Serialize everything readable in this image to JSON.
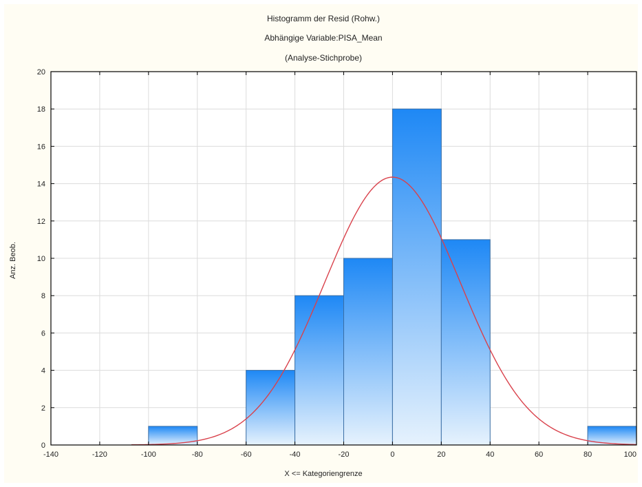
{
  "chart_data": {
    "type": "bar",
    "title_lines": [
      "Histogramm der Resid (Rohw.)",
      "Abhängige Variable:PISA_Mean",
      "(Analyse-Stichprobe)"
    ],
    "xlabel": "X <= Kategoriengrenze",
    "ylabel": "Anz. Beob.",
    "xlim": [
      -140,
      100
    ],
    "ylim": [
      0,
      20
    ],
    "x_ticks": [
      -140,
      -120,
      -100,
      -80,
      -60,
      -40,
      -20,
      0,
      20,
      40,
      60,
      80,
      100
    ],
    "y_ticks": [
      0,
      2,
      4,
      6,
      8,
      10,
      12,
      14,
      16,
      18,
      20
    ],
    "x_tick_labels": [
      "-140",
      "-120",
      "-100",
      "-80",
      "-60",
      "-40",
      "-20",
      "0",
      "20",
      "40",
      "60",
      "80",
      "100"
    ],
    "y_tick_labels": [
      "0",
      "2",
      "4",
      "6",
      "8",
      "10",
      "12",
      "14",
      "16",
      "18",
      "20"
    ],
    "grid": true,
    "bins": [
      {
        "x0": -100,
        "x1": -80,
        "count": 1
      },
      {
        "x0": -60,
        "x1": -40,
        "count": 4
      },
      {
        "x0": -40,
        "x1": -20,
        "count": 8
      },
      {
        "x0": -20,
        "x1": 0,
        "count": 10
      },
      {
        "x0": 0,
        "x1": 20,
        "count": 18
      },
      {
        "x0": 20,
        "x1": 40,
        "count": 11
      },
      {
        "x0": 80,
        "x1": 100,
        "count": 1
      }
    ],
    "normal_curve": {
      "mean": 0,
      "sd": 27.8,
      "peak": 14.35,
      "x_range": [
        -107,
        100
      ]
    },
    "colors": {
      "bar_top": "#1e88f5",
      "bar_bottom": "#e6f2fd",
      "bar_stroke": "#3a6ea5",
      "curve": "#d9414b",
      "grid": "#dcdcdc",
      "plot_bg": "#ffffff",
      "frame_bg": "#fffdf3"
    }
  }
}
